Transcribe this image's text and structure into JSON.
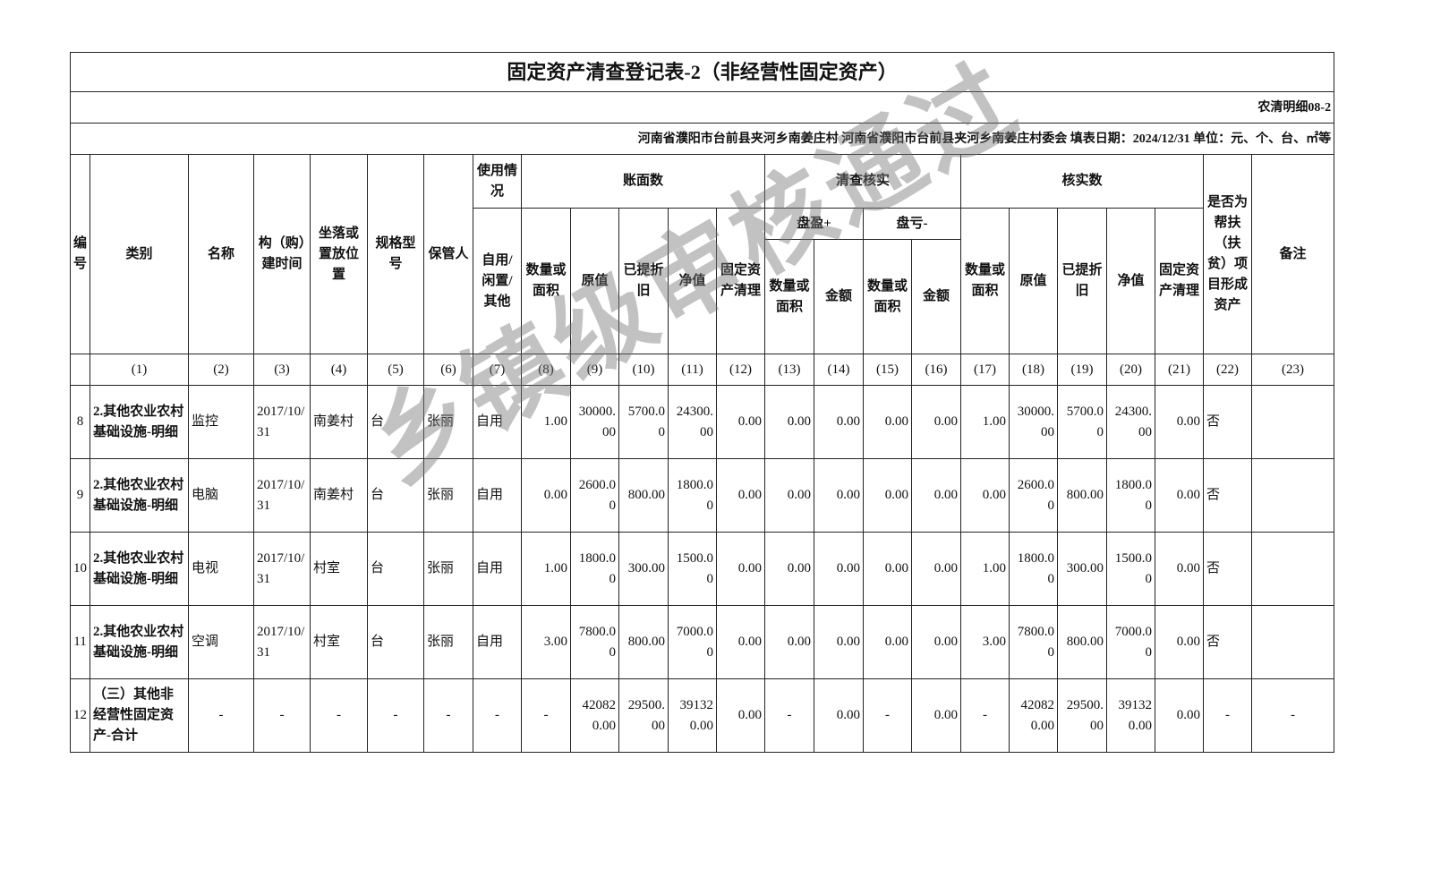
{
  "title": "固定资产清查登记表-2（非经营性固定资产）",
  "form_code": "农清明细08-2",
  "info_line": "河南省濮阳市台前县夹河乡南姜庄村  河南省濮阳市台前县夹河乡南姜庄村委会  填表日期：2024/12/31   单位：元、个、台、㎡等",
  "headers": {
    "no": "编号",
    "category": "类别",
    "name": "名称",
    "build_time": "构（购）建时间",
    "location": "坐落或置放位置",
    "spec": "规格型号",
    "keeper": "保管人",
    "usage": "使用情况",
    "usage_sub": "自用/闲置/其他",
    "book": "账面数",
    "qty": "数量或面积",
    "orig": "原值",
    "depr": "已提折旧",
    "net": "净值",
    "clear": "固定资产清理",
    "check": "清查核实",
    "surplus": "盘盈+",
    "loss": "盘亏-",
    "amount": "金额",
    "verified": "核实数",
    "poverty": "是否为帮扶（扶贫）项目形成资产",
    "remark": "备注"
  },
  "col_numbers": [
    "",
    "(1)",
    "(2)",
    "(3)",
    "(4)",
    "(5)",
    "(6)",
    "(7)",
    "(8)",
    "(9)",
    "(10)",
    "(11)",
    "(12)",
    "(13)",
    "(14)",
    "(15)",
    "(16)",
    "(17)",
    "(18)",
    "(19)",
    "(20)",
    "(21)",
    "(22)",
    "(23)"
  ],
  "rows": [
    [
      "8",
      "2.其他农业农村基础设施-明细",
      "监控",
      "2017/10/31",
      "南姜村",
      "台",
      "张丽",
      "自用",
      "1.00",
      "30000.00",
      "5700.00",
      "24300.00",
      "0.00",
      "0.00",
      "0.00",
      "0.00",
      "0.00",
      "1.00",
      "30000.00",
      "5700.00",
      "24300.00",
      "0.00",
      "否",
      ""
    ],
    [
      "9",
      "2.其他农业农村基础设施-明细",
      "电脑",
      "2017/10/31",
      "南姜村",
      "台",
      "张丽",
      "自用",
      "0.00",
      "2600.00",
      "800.00",
      "1800.00",
      "0.00",
      "0.00",
      "0.00",
      "0.00",
      "0.00",
      "0.00",
      "2600.00",
      "800.00",
      "1800.00",
      "0.00",
      "否",
      ""
    ],
    [
      "10",
      "2.其他农业农村基础设施-明细",
      "电视",
      "2017/10/31",
      "村室",
      "台",
      "张丽",
      "自用",
      "1.00",
      "1800.00",
      "300.00",
      "1500.00",
      "0.00",
      "0.00",
      "0.00",
      "0.00",
      "0.00",
      "1.00",
      "1800.00",
      "300.00",
      "1500.00",
      "0.00",
      "否",
      ""
    ],
    [
      "11",
      "2.其他农业农村基础设施-明细",
      "空调",
      "2017/10/31",
      "村室",
      "台",
      "张丽",
      "自用",
      "3.00",
      "7800.00",
      "800.00",
      "7000.00",
      "0.00",
      "0.00",
      "0.00",
      "0.00",
      "0.00",
      "3.00",
      "7800.00",
      "800.00",
      "7000.00",
      "0.00",
      "否",
      ""
    ],
    [
      "12",
      "（三）其他非经营性固定资产-合计",
      "-",
      "-",
      "-",
      "-",
      "-",
      "-",
      "-",
      "420820.00",
      "29500.00",
      "391320.00",
      "0.00",
      "-",
      "0.00",
      "-",
      "0.00",
      "-",
      "420820.00",
      "29500.00",
      "391320.00",
      "0.00",
      "-",
      "-"
    ]
  ],
  "watermark": "乡镇级审核通过"
}
